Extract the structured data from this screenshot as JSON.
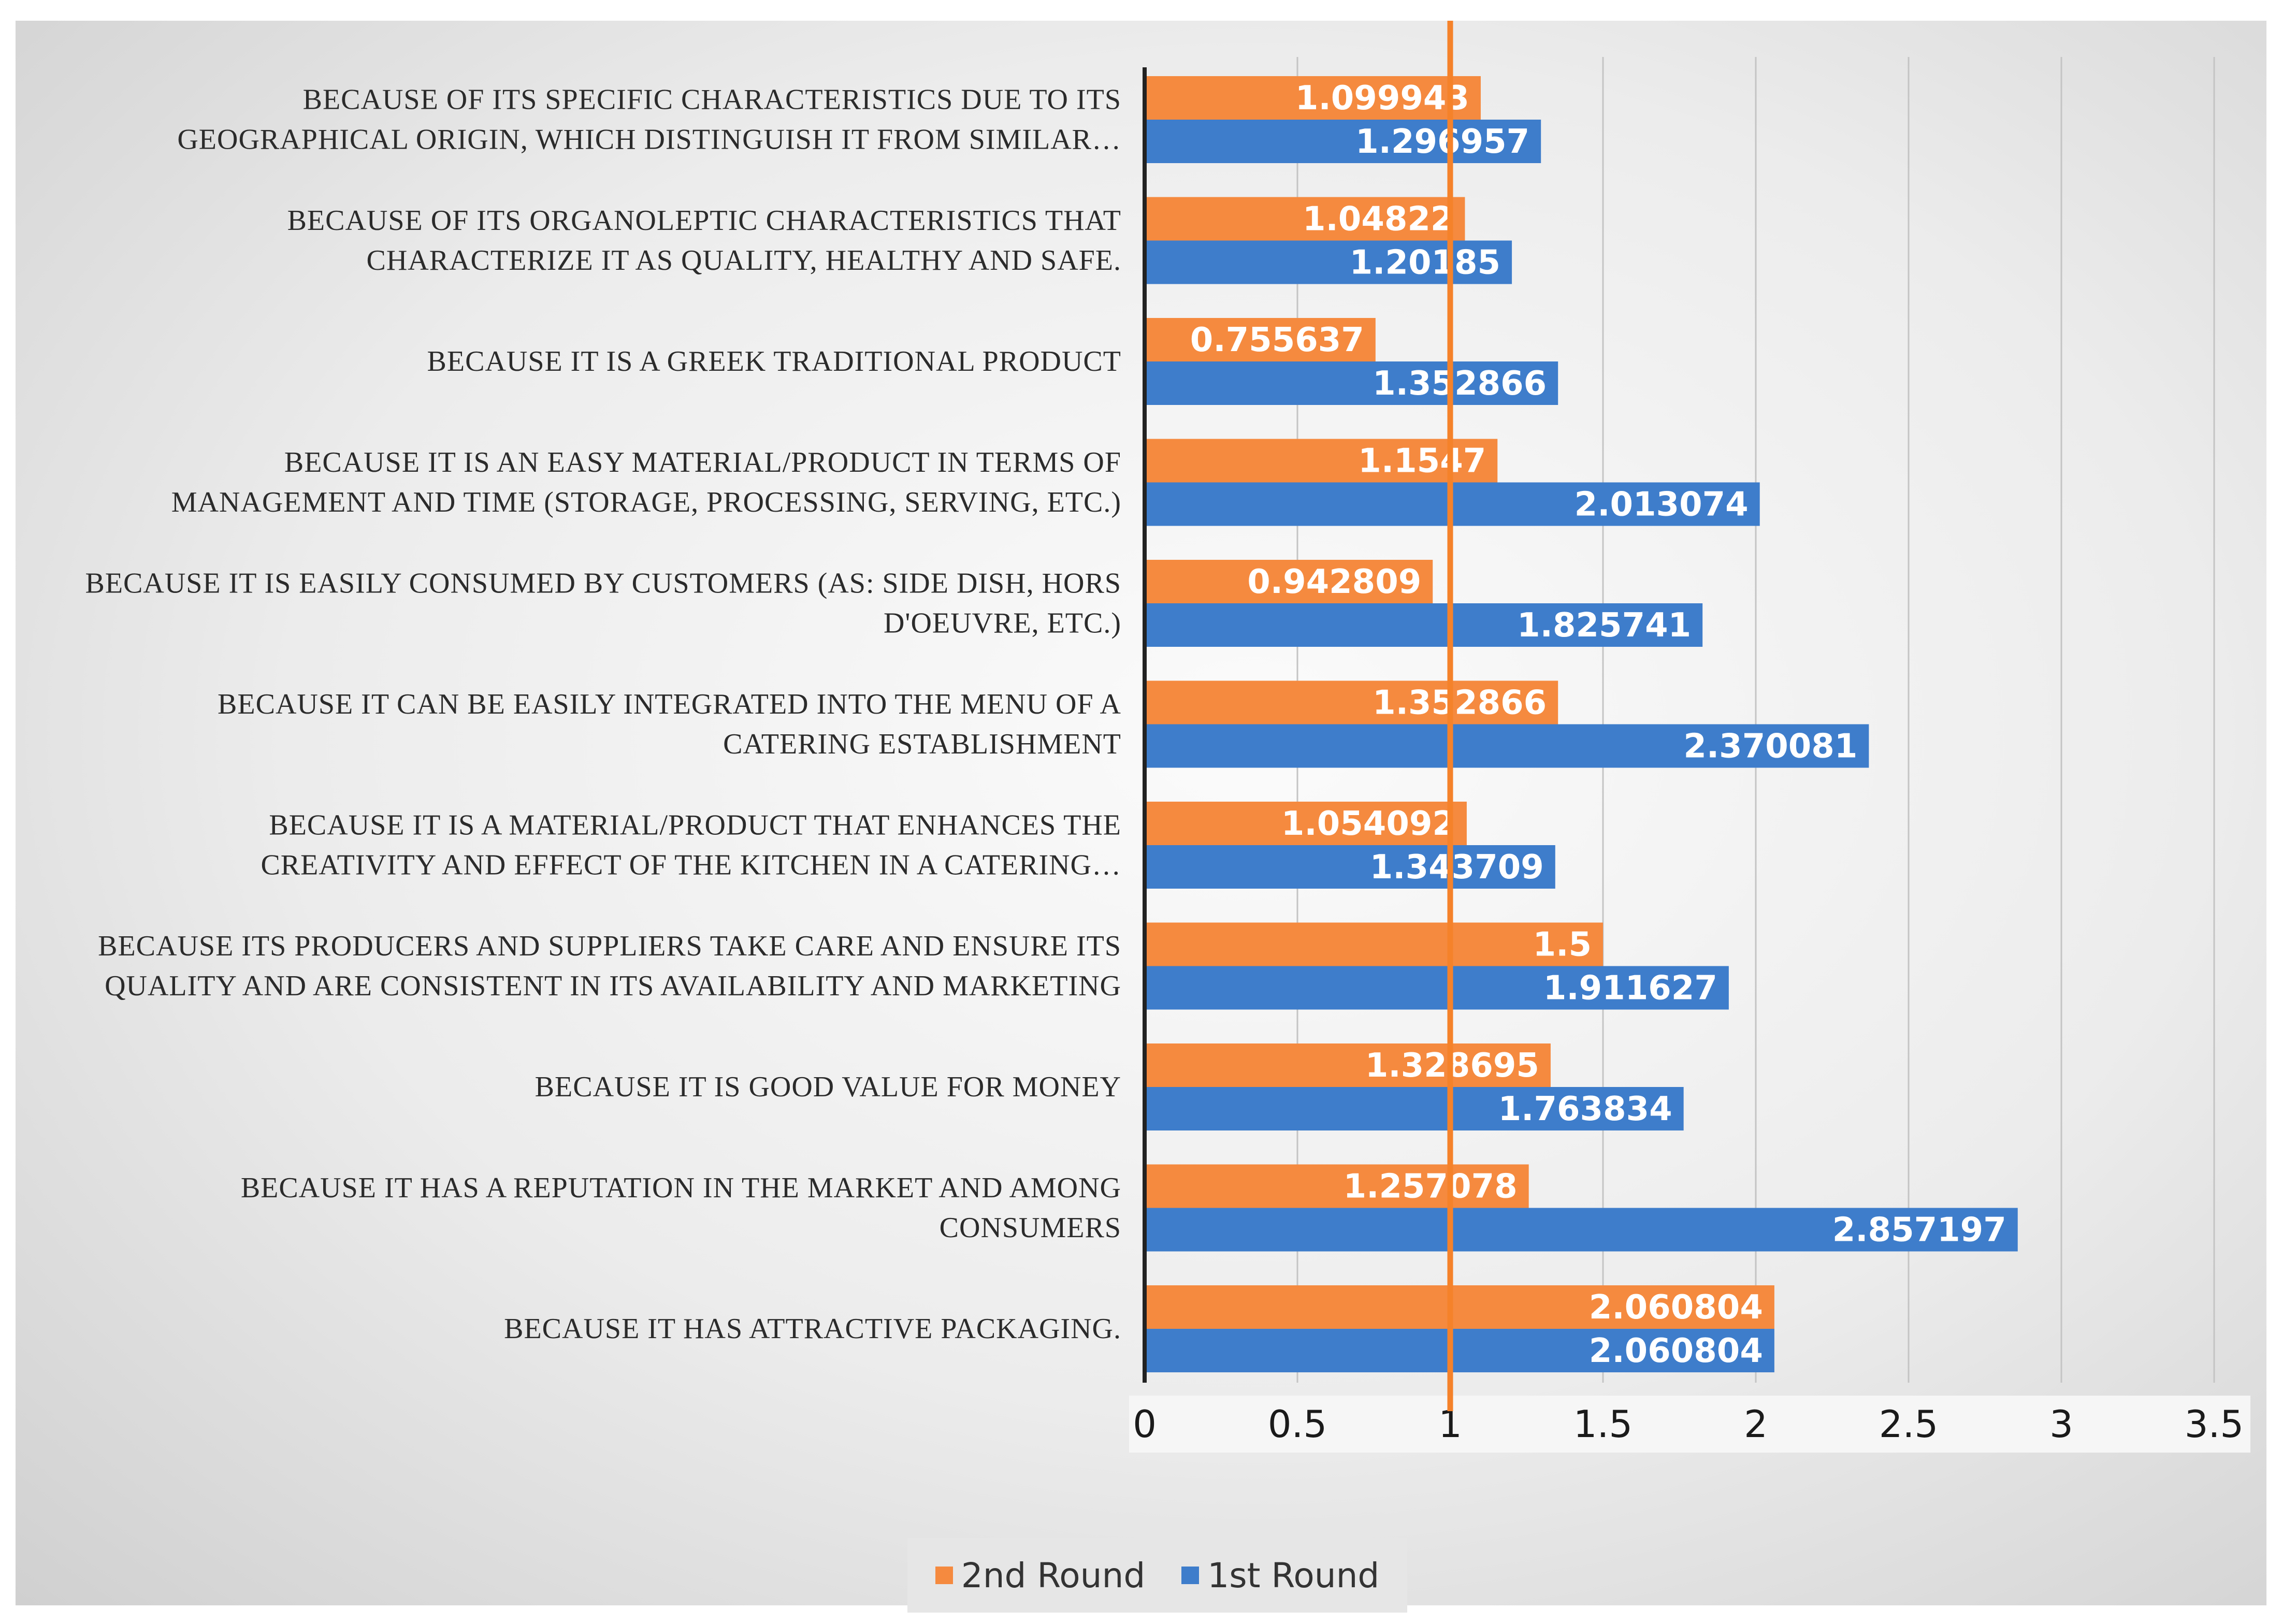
{
  "chart_data": {
    "type": "bar",
    "orientation": "horizontal",
    "xlim": [
      0,
      3.5
    ],
    "x_ticks": [
      "0",
      "0.5",
      "1",
      "1.5",
      "2",
      "2.5",
      "3",
      "3.5"
    ],
    "grid": true,
    "legend_position": "bottom",
    "reference_line": {
      "value": 1,
      "color": "#F5822A"
    },
    "categories": [
      {
        "lines": [
          "BECAUSE OF ITS SPECIFIC CHARACTERISTICS DUE TO ITS",
          "GEOGRAPHICAL ORIGIN, WHICH DISTINGUISH IT FROM SIMILAR…"
        ]
      },
      {
        "lines": [
          "BECAUSE OF ITS ORGANOLEPTIC CHARACTERISTICS THAT",
          "CHARACTERIZE IT AS QUALITY, HEALTHY AND SAFE."
        ]
      },
      {
        "lines": [
          "BECAUSE IT IS A GREEK TRADITIONAL PRODUCT"
        ]
      },
      {
        "lines": [
          "BECAUSE IT IS AN EASY MATERIAL/PRODUCT IN TERMS OF",
          "MANAGEMENT AND TIME (STORAGE, PROCESSING, SERVING, ETC.)"
        ]
      },
      {
        "lines": [
          "BECAUSE IT IS EASILY CONSUMED BY CUSTOMERS (AS: SIDE DISH, HORS",
          "D'OEUVRE, ETC.)"
        ]
      },
      {
        "lines": [
          "BECAUSE IT CAN BE EASILY INTEGRATED INTO THE MENU OF A",
          "CATERING ESTABLISHMENT"
        ]
      },
      {
        "lines": [
          "BECAUSE IT IS A MATERIAL/PRODUCT THAT ENHANCES THE",
          "CREATIVITY AND EFFECT OF THE KITCHEN IN A CATERING…"
        ]
      },
      {
        "lines": [
          "BECAUSE ITS PRODUCERS AND SUPPLIERS TAKE CARE AND ENSURE ITS",
          "QUALITY AND ARE CONSISTENT IN ITS AVAILABILITY AND MARKETING"
        ]
      },
      {
        "lines": [
          "BECAUSE IT IS GOOD VALUE FOR MONEY"
        ]
      },
      {
        "lines": [
          "BECAUSE IT HAS A REPUTATION IN THE MARKET AND AMONG",
          "CONSUMERS"
        ]
      },
      {
        "lines": [
          "BECAUSE IT HAS ATTRACTIVE PACKAGING."
        ]
      }
    ],
    "series": [
      {
        "name": "2nd Round",
        "color": "#F58A3F",
        "values": [
          1.099943,
          1.04822,
          0.755637,
          1.1547,
          0.942809,
          1.352866,
          1.054092,
          1.5,
          1.328695,
          1.257078,
          2.060804
        ],
        "labels": [
          "1.099943",
          "1.04822",
          "0.755637",
          "1.1547",
          "0.942809",
          "1.352866",
          "1.054092",
          "1.5",
          "1.328695",
          "1.257078",
          "2.060804"
        ]
      },
      {
        "name": "1st Round",
        "color": "#3E7DCB",
        "values": [
          1.296957,
          1.20185,
          1.352866,
          2.013074,
          1.825741,
          2.370081,
          1.343709,
          1.911627,
          1.763834,
          2.857197,
          2.060804
        ],
        "labels": [
          "1.296957",
          "1.20185",
          "1.352866",
          "2.013074",
          "1.825741",
          "2.370081",
          "1.343709",
          "1.911627",
          "1.763834",
          "2.857197",
          "2.060804"
        ]
      }
    ]
  }
}
